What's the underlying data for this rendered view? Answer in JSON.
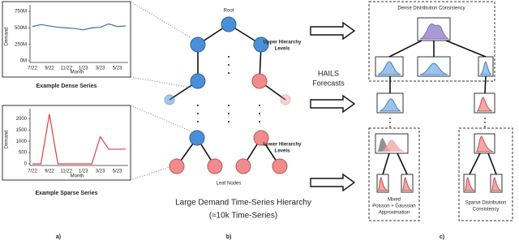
{
  "panel_a": {
    "dense": {
      "type": "line",
      "caption": "Example Dense Series",
      "x_label": "Month",
      "y_label": "Demand",
      "color": "#3b6fa8",
      "categories": [
        "7/22",
        null,
        "9/22",
        null,
        "11/22",
        null,
        "1/23",
        null,
        "3/23",
        null,
        "5/23",
        null
      ],
      "values": [
        520000000,
        550000000,
        530000000,
        510000000,
        500000000,
        490000000,
        470000000,
        500000000,
        510000000,
        560000000,
        520000000,
        530000000
      ],
      "ylim": [
        0,
        800000000
      ],
      "yticks": [
        {
          "value": 0,
          "label": "0M"
        },
        {
          "value": 250000000,
          "label": "250M"
        },
        {
          "value": 500000000,
          "label": "500M"
        },
        {
          "value": 750000000,
          "label": "750M"
        }
      ]
    },
    "sparse": {
      "type": "line",
      "caption": "Example Sparse Series",
      "x_label": "Month",
      "y_label": "Demand",
      "color": "#d9434b",
      "categories": [
        "7/22",
        null,
        "9/22",
        null,
        "11/22",
        null,
        "1/23",
        null,
        "3/23",
        null,
        "5/23",
        null
      ],
      "values": [
        0,
        0,
        2200,
        0,
        0,
        0,
        0,
        0,
        1200,
        650,
        650,
        650
      ],
      "ylim": [
        0,
        2300
      ],
      "yticks": [
        0,
        500,
        1000,
        1500,
        2000
      ]
    },
    "label": "a)"
  },
  "panel_b": {
    "root": "Root",
    "upper": [
      "Upper Hierarchy",
      "Levels"
    ],
    "lower": [
      "Lower Hierarchy",
      "Levels"
    ],
    "leaf": "Leaf Nodes",
    "caption": "Large Demand Time-Series Hierarchy",
    "subcaption": "(≈10k Time-Series)",
    "label": "b)"
  },
  "forecasts": [
    "HAILS",
    "Forecasts"
  ],
  "panel_c": {
    "dense_title": "Dense Distribution Consistency",
    "mixed": [
      "Mixed",
      "Poisson + Gaussian",
      "Approximation"
    ],
    "sparse": [
      "Sparse Distribution",
      "Consistency"
    ],
    "label": "c)"
  }
}
